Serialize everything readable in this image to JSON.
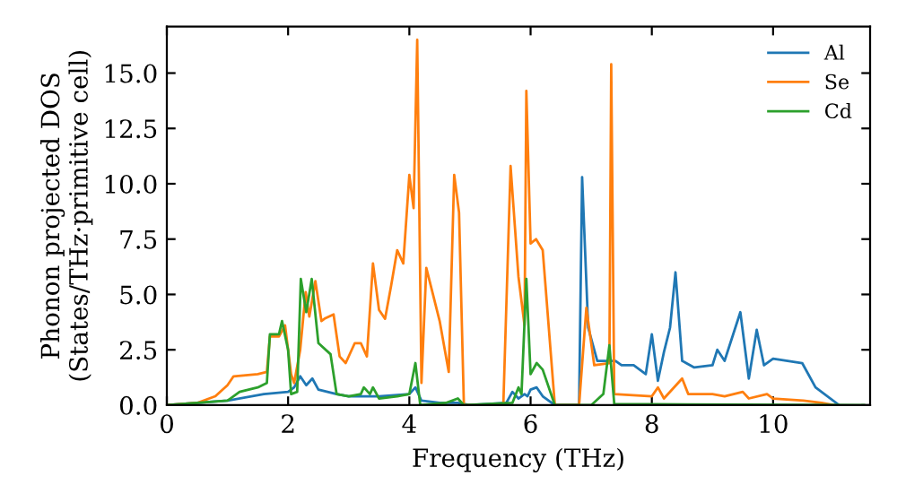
{
  "chart_data": {
    "type": "line",
    "xlabel": "Frequency (THz)",
    "ylabel": "Phonon projected DOS\n(States/THz·primitive cell)",
    "xlim": [
      0,
      11.6
    ],
    "ylim": [
      0,
      17.1
    ],
    "xticks": [
      0,
      2,
      4,
      6,
      8,
      10
    ],
    "yticks": [
      {
        "value": 0,
        "label": "0.0"
      },
      {
        "value": 2.5,
        "label": "2.5"
      },
      {
        "value": 5,
        "label": "5.0"
      },
      {
        "value": 7.5,
        "label": "7.5"
      },
      {
        "value": 10,
        "label": "10.0"
      },
      {
        "value": 12.5,
        "label": "12.5"
      },
      {
        "value": 15,
        "label": "15.0"
      }
    ],
    "legend": "top right",
    "grid": false,
    "marker": "none",
    "line_style": "solid",
    "series": [
      {
        "name": "Al",
        "color": "#1f77b4",
        "x": [
          0,
          1,
          1.6,
          2.0,
          2.1,
          2.2,
          2.3,
          2.4,
          2.5,
          2.8,
          3.0,
          3.5,
          4.0,
          4.1,
          4.2,
          4.5,
          4.8,
          5.0,
          5.6,
          5.7,
          5.8,
          5.9,
          5.95,
          6.0,
          6.1,
          6.2,
          6.4,
          6.8,
          6.85,
          6.95,
          7.1,
          7.4,
          7.5,
          7.7,
          7.9,
          8.0,
          8.1,
          8.2,
          8.3,
          8.39,
          8.5,
          8.7,
          9.0,
          9.08,
          9.2,
          9.46,
          9.6,
          9.73,
          9.85,
          10.0,
          10.48,
          10.7,
          11.09
        ],
        "values": [
          0,
          0.2,
          0.5,
          0.6,
          0.8,
          1.3,
          0.9,
          1.2,
          0.7,
          0.5,
          0.4,
          0.4,
          0.5,
          0.8,
          0.2,
          0.1,
          0.1,
          0,
          0.1,
          0.6,
          0.3,
          0.5,
          0.4,
          0.7,
          0.8,
          0.4,
          0,
          0,
          10.3,
          3.5,
          2.0,
          2.0,
          1.8,
          1.8,
          1.4,
          3.2,
          1.1,
          2.4,
          3.5,
          6.0,
          2.0,
          1.7,
          1.8,
          2.5,
          2.0,
          4.2,
          1.2,
          3.4,
          1.8,
          2.1,
          1.9,
          0.8,
          0
        ]
      },
      {
        "name": "Se",
        "color": "#ff7f0e",
        "x": [
          0,
          0.5,
          0.8,
          1.0,
          1.1,
          1.5,
          1.65,
          1.7,
          1.85,
          1.95,
          2.05,
          2.1,
          2.2,
          2.29,
          2.35,
          2.45,
          2.55,
          2.6,
          2.75,
          2.85,
          2.95,
          3.1,
          3.2,
          3.3,
          3.4,
          3.5,
          3.6,
          3.7,
          3.8,
          3.9,
          4.0,
          4.07,
          4.13,
          4.2,
          4.28,
          4.5,
          4.65,
          4.74,
          4.82,
          4.9,
          4.95,
          5.55,
          5.67,
          5.8,
          5.9,
          5.93,
          6.0,
          6.09,
          6.2,
          6.4,
          6.8,
          6.92,
          7.05,
          7.3,
          7.33,
          7.38,
          8.0,
          8.1,
          8.2,
          8.5,
          8.6,
          9.0,
          9.2,
          9.5,
          9.6,
          9.9,
          10.0,
          10.5,
          10.8,
          11.0
        ],
        "values": [
          0,
          0.1,
          0.4,
          0.9,
          1.3,
          1.4,
          1.5,
          3.1,
          3.1,
          3.6,
          1.4,
          1.0,
          2.5,
          5.1,
          4.0,
          5.6,
          3.8,
          3.9,
          4.1,
          2.2,
          1.9,
          2.8,
          2.8,
          2.2,
          6.4,
          4.3,
          3.9,
          5.4,
          7.0,
          6.4,
          10.4,
          8.9,
          16.5,
          1.0,
          6.2,
          3.8,
          1.5,
          10.4,
          8.7,
          0,
          0,
          0,
          10.8,
          5.8,
          3.6,
          14.2,
          7.3,
          7.5,
          7.0,
          0,
          0,
          4.4,
          1.8,
          1.9,
          15.4,
          0.5,
          0.4,
          0.8,
          0.3,
          1.2,
          0.5,
          0.5,
          0.4,
          0.6,
          0.3,
          0.5,
          0.3,
          0.2,
          0.1,
          0
        ]
      },
      {
        "name": "Cd",
        "color": "#2ca02c",
        "x": [
          0,
          1.0,
          1.2,
          1.5,
          1.65,
          1.7,
          1.85,
          1.9,
          2.0,
          2.05,
          2.15,
          2.21,
          2.3,
          2.39,
          2.5,
          2.7,
          2.8,
          3.0,
          3.2,
          3.25,
          3.35,
          3.4,
          3.5,
          3.8,
          4.0,
          4.1,
          4.18,
          4.6,
          4.8,
          4.9,
          5.7,
          5.8,
          5.85,
          5.93,
          6.0,
          6.1,
          6.2,
          6.4,
          7.0,
          7.2,
          7.3,
          7.38,
          11.5
        ],
        "values": [
          0,
          0.2,
          0.6,
          0.8,
          1.0,
          3.2,
          3.2,
          3.8,
          2.5,
          0.5,
          0.6,
          5.7,
          4.2,
          5.7,
          2.8,
          2.3,
          0.5,
          0.4,
          0.5,
          0.8,
          0.5,
          0.8,
          0.3,
          0.4,
          0.5,
          1.9,
          0,
          0.1,
          0.3,
          0,
          0.1,
          0.8,
          0.5,
          5.7,
          1.4,
          1.9,
          1.6,
          0,
          0,
          0.5,
          2.7,
          0.05,
          0
        ]
      }
    ]
  }
}
